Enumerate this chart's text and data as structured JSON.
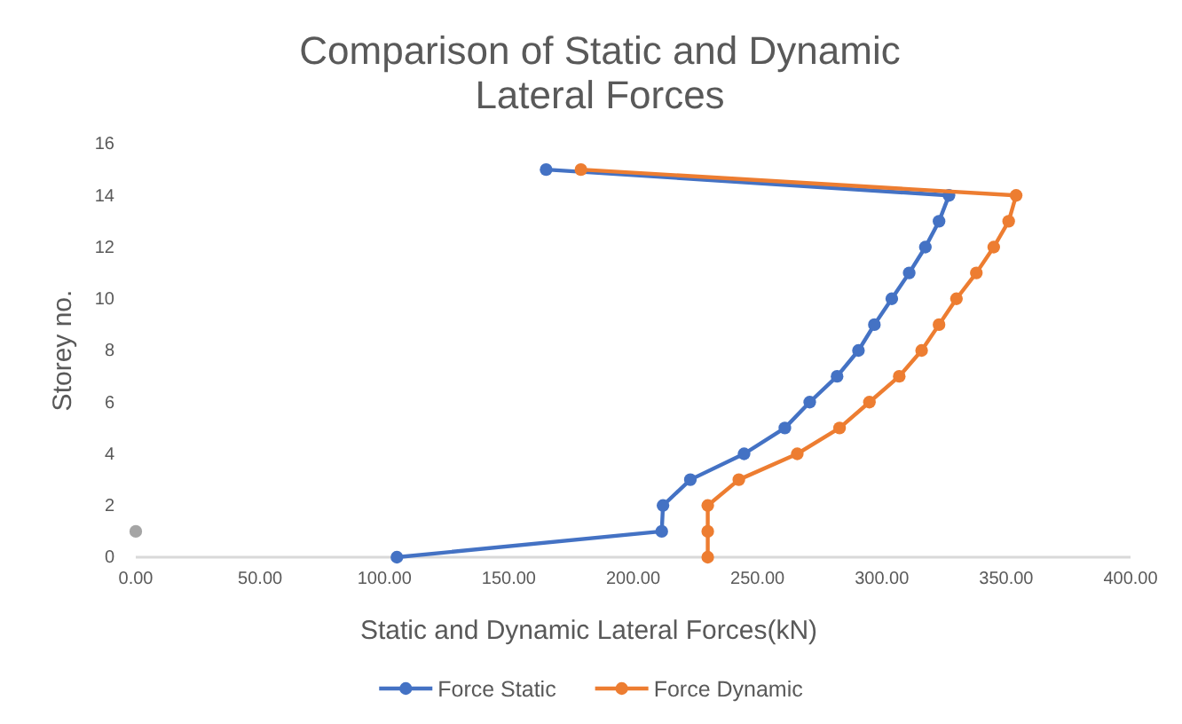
{
  "chart_data": {
    "type": "line",
    "title": "Comparison of Static and Dynamic Lateral Forces",
    "xlabel": "Static and Dynamic Lateral Forces(kN)",
    "ylabel": "Storey no.",
    "xlim": [
      0,
      400
    ],
    "xticks": [
      {
        "value": 0,
        "label": "0.00"
      },
      {
        "value": 50,
        "label": "50.00"
      },
      {
        "value": 100,
        "label": "100.00"
      },
      {
        "value": 150,
        "label": "150.00"
      },
      {
        "value": 200,
        "label": "200.00"
      },
      {
        "value": 250,
        "label": "250.00"
      },
      {
        "value": 300,
        "label": "300.00"
      },
      {
        "value": 350,
        "label": "350.00"
      },
      {
        "value": 400,
        "label": "400.00"
      }
    ],
    "ylim": [
      0,
      16
    ],
    "yticks": [
      0,
      2,
      4,
      6,
      8,
      10,
      12,
      14,
      16
    ],
    "grid": false,
    "legend": "bottom",
    "marker": "circle",
    "line_style": "solid",
    "series": [
      {
        "name": "Force Static",
        "color": "#4472c4",
        "x": [
          105,
          211.5,
          212,
          223,
          244.6,
          261,
          271,
          282,
          290.6,
          297,
          304,
          311,
          317.5,
          323,
          327,
          165
        ],
        "values": [
          0,
          1,
          2,
          3,
          4,
          5,
          6,
          7,
          8,
          9,
          10,
          11,
          12,
          13,
          14,
          15
        ]
      },
      {
        "name": "Force Dynamic",
        "color": "#ed7d31",
        "x": [
          230,
          230,
          230,
          242.5,
          266,
          283,
          295,
          307,
          316,
          323,
          330,
          338,
          345,
          351,
          354,
          179
        ],
        "values": [
          0,
          1,
          2,
          3,
          4,
          5,
          6,
          7,
          8,
          9,
          10,
          11,
          12,
          13,
          14,
          15
        ]
      },
      {
        "color": "#a5a5a5",
        "x": [
          0
        ],
        "values": [
          1
        ]
      }
    ]
  }
}
